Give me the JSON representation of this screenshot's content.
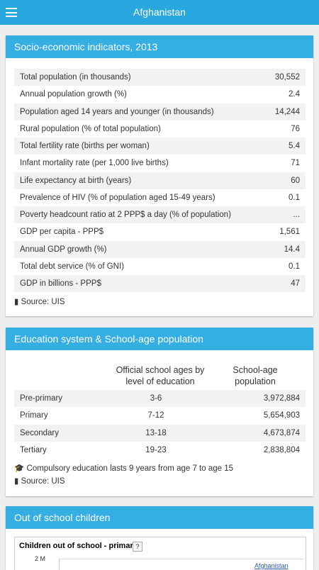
{
  "header": {
    "title": "Afghanistan"
  },
  "socio": {
    "title": "Socio-economic indicators, 2013",
    "rows": [
      [
        "Total population (in thousands)",
        "30,552"
      ],
      [
        "Annual population growth (%)",
        "2.4"
      ],
      [
        "Population aged 14 years and younger (in thousands)",
        "14,244"
      ],
      [
        "Rural population (% of total population)",
        "76"
      ],
      [
        "Total fertility rate (births per woman)",
        "5.4"
      ],
      [
        "Infant mortality rate (per 1,000 live births)",
        "71"
      ],
      [
        "Life expectancy at birth (years)",
        "60"
      ],
      [
        "Prevalence of HIV (% of population aged 15-49 years)",
        "0.1"
      ],
      [
        "Poverty headcount ratio at 2 PPP$ a day (% of population)",
        "..."
      ],
      [
        "GDP per capita - PPP$",
        "1,561"
      ],
      [
        "Annual GDP growth (%)",
        "14.4"
      ],
      [
        "Total debt service (% of GNI)",
        "0.1"
      ],
      [
        "GDP in billions - PPP$",
        "47"
      ]
    ],
    "source": "Source: UIS"
  },
  "education": {
    "title": "Education system & School-age population",
    "columns": [
      "Official school ages by level of education",
      "School-age population"
    ],
    "rows": [
      [
        "Pre-primary",
        "3-6",
        "3,972,884"
      ],
      [
        "Primary",
        "7-12",
        "5,654,903"
      ],
      [
        "Secondary",
        "13-18",
        "4,673,874"
      ],
      [
        "Tertiary",
        "19-23",
        "2,838,804"
      ]
    ],
    "note": "Compulsory education lasts 9 years from age 7 to age 15",
    "source": "Source: UIS"
  },
  "out_of_school": {
    "title": "Out of school children",
    "chart_title": "Children out of school - primary",
    "help": "?",
    "axis_label": "2 M",
    "legend": "Afghanistan"
  }
}
